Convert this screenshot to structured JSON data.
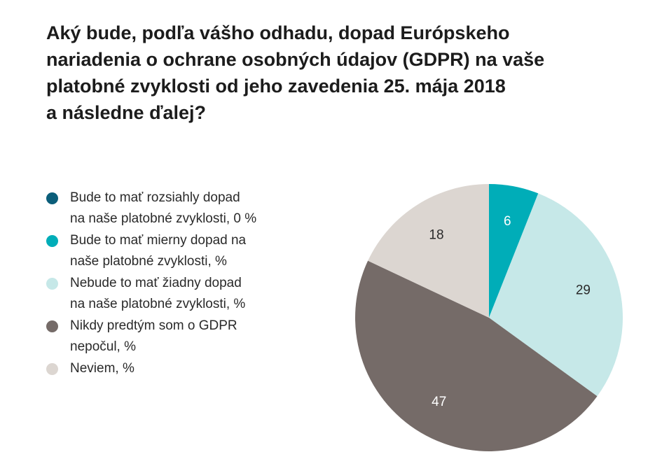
{
  "title_lines": [
    "Aký bude, podľa vášho odhadu, dopad Európskeho",
    "nariadenia o ochrane osobných údajov (GDPR) na vaše",
    "platobné zvyklosti od jeho zavedenia 25. mája 2018",
    "a následne ďalej?"
  ],
  "legend": [
    {
      "lines": [
        "Bude to mať rozsiahly dopad",
        "na naše platobné zvyklosti, 0 %"
      ],
      "color": "#0b5e7a"
    },
    {
      "lines": [
        "Bude to mať mierny dopad na",
        "naše platobné zvyklosti, %"
      ],
      "color": "#00adb8"
    },
    {
      "lines": [
        "Nebude to mať žiadny dopad",
        "na naše platobné zvyklosti, %"
      ],
      "color": "#c6e8e8"
    },
    {
      "lines": [
        "Nikdy predtým som o GDPR",
        "nepočul, %"
      ],
      "color": "#756b68"
    },
    {
      "lines": [
        "Neviem, %"
      ],
      "color": "#dcd6d1"
    }
  ],
  "chart_data": {
    "type": "pie",
    "slices": [
      {
        "label": "Bude to mať rozsiahly dopad na naše platobné zvyklosti",
        "value": 0,
        "color": "#0b5e7a",
        "text_color": "#ffffff",
        "show_label": false
      },
      {
        "label": "Bude to mať mierny dopad na naše platobné zvyklosti",
        "value": 6,
        "color": "#00adb8",
        "text_color": "#ffffff",
        "show_label": true
      },
      {
        "label": "Nebude to mať žiadny dopad na naše platobné zvyklosti",
        "value": 29,
        "color": "#c6e8e8",
        "text_color": "#2a2a2a",
        "show_label": true
      },
      {
        "label": "Nikdy predtým som o GDPR nepočul",
        "value": 47,
        "color": "#756b68",
        "text_color": "#ffffff",
        "show_label": true
      },
      {
        "label": "Neviem",
        "value": 18,
        "color": "#dcd6d1",
        "text_color": "#2a2a2a",
        "show_label": true
      }
    ],
    "start": "12 o'clock",
    "direction": "clockwise"
  }
}
